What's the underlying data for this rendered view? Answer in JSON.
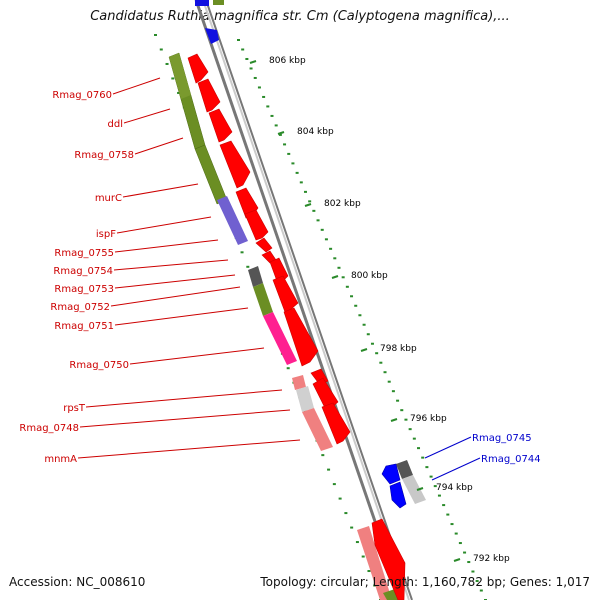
{
  "title": "Candidatus Ruthia magnifica str. Cm (Calyptogena magnifica),...",
  "accession": "Accession: NC_008610",
  "topology": "Topology: circular; Length: 1,160,782 bp; Genes: 1,017",
  "kbp_ticks": [
    "806 kbp",
    "804 kbp",
    "802 kbp",
    "800 kbp",
    "798 kbp",
    "796 kbp",
    "794 kbp",
    "792 kbp"
  ],
  "gene_labels_left": [
    "Rmag_0760",
    "ddl",
    "Rmag_0758",
    "murC",
    "ispF",
    "Rmag_0755",
    "Rmag_0754",
    "Rmag_0753",
    "Rmag_0752",
    "Rmag_0751",
    "Rmag_0750",
    "rpsT",
    "Rmag_0748",
    "mnmA"
  ],
  "gene_labels_right": [
    "Rmag_0745",
    "Rmag_0744"
  ],
  "colors": {
    "left_label": "#cc0000",
    "right_label": "#0000cc",
    "forward_strand": "#ff0000",
    "reverse_strand": "#0000ff",
    "backbone": "#888888",
    "tick": "#2a8a2a"
  }
}
